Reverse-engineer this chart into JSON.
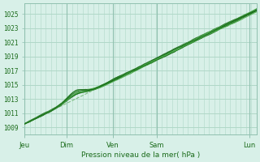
{
  "bg_color": "#d8f0e8",
  "plot_bg_color": "#d8f0e8",
  "grid_color": "#b0d8c8",
  "line_color_dark": "#1a6b1a",
  "line_color_light": "#4aaa4a",
  "dashed_color": "#5aaa5a",
  "ylabel_ticks": [
    1009,
    1011,
    1013,
    1015,
    1017,
    1019,
    1021,
    1023,
    1025
  ],
  "ymin": 1008,
  "ymax": 1026.5,
  "xlabel": "Pression niveau de la mer( hPa )",
  "xtick_labels": [
    "Jeu",
    "Dim",
    "Ven",
    "Sam",
    "Lun"
  ],
  "xtick_positions": [
    0,
    0.18,
    0.38,
    0.57,
    0.97
  ],
  "num_points": 200
}
